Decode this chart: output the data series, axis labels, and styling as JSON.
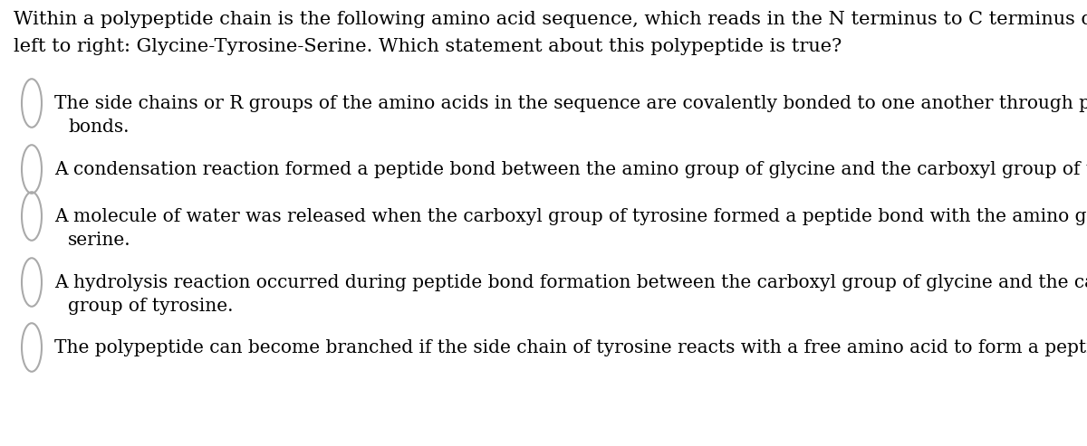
{
  "background_color": "#ffffff",
  "text_color": "#000000",
  "circle_color": "#aaaaaa",
  "font_family": "serif",
  "prompt_lines": [
    "Within a polypeptide chain is the following amino acid sequence, which reads in the N terminus to C terminus direction from",
    "left to right: Glycine-Tyrosine-Serine. Which statement about this polypeptide is true?"
  ],
  "options": [
    {
      "lines": [
        "The side chains or R groups of the amino acids in the sequence are covalently bonded to one another through peptide",
        "bonds."
      ]
    },
    {
      "lines": [
        "A condensation reaction formed a peptide bond between the amino group of glycine and the carboxyl group of tyrosine."
      ]
    },
    {
      "lines": [
        "A molecule of water was released when the carboxyl group of tyrosine formed a peptide bond with the amino group of",
        "serine."
      ]
    },
    {
      "lines": [
        "A hydrolysis reaction occurred during peptide bond formation between the carboxyl group of glycine and the carboxyl",
        "group of tyrosine."
      ]
    },
    {
      "lines": [
        "The polypeptide can become branched if the side chain of tyrosine reacts with a free amino acid to form a peptide bond."
      ]
    }
  ],
  "font_size_prompt": 15.0,
  "font_size_option": 14.5,
  "figsize": [
    12.0,
    4.93
  ],
  "dpi": 100
}
